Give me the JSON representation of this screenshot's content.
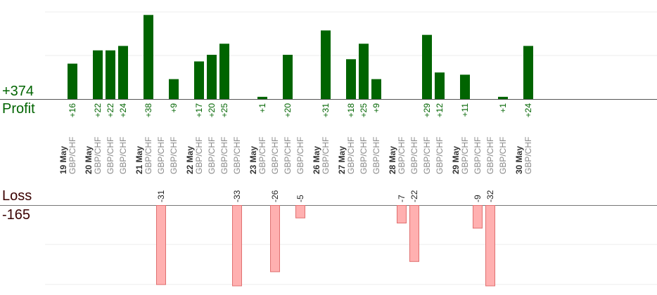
{
  "chart_data": {
    "type": "bar",
    "profit_label": "Profit",
    "profit_total": "+374",
    "loss_label": "Loss",
    "loss_total": "-165",
    "colors": {
      "profit_bar": "#006400",
      "loss_bar": "#ffb0b0",
      "loss_stroke": "#e07070",
      "profit_text": "#006400",
      "loss_text": "#3a0000",
      "pair_text": "#888888",
      "date_text": "#333333"
    },
    "groups": [
      {
        "date": "19 May",
        "trades": [
          {
            "pair": "GBP/CHF",
            "value": 16
          }
        ]
      },
      {
        "date": "20 May",
        "trades": [
          {
            "pair": "GBP/CHF",
            "value": 22
          },
          {
            "pair": "GBP/CHF",
            "value": 22
          },
          {
            "pair": "GBP/CHF",
            "value": 24
          }
        ]
      },
      {
        "date": "21 May",
        "trades": [
          {
            "pair": "GBP/CHF",
            "value": 38
          },
          {
            "pair": "GBP/CHF",
            "value": -31
          },
          {
            "pair": "GBP/CHF",
            "value": 9
          }
        ]
      },
      {
        "date": "22 May",
        "trades": [
          {
            "pair": "GBP/CHF",
            "value": 17
          },
          {
            "pair": "GBP/CHF",
            "value": 20
          },
          {
            "pair": "GBP/CHF",
            "value": 25
          },
          {
            "pair": "GBP/CHF",
            "value": -33
          }
        ]
      },
      {
        "date": "23 May",
        "trades": [
          {
            "pair": "GBP/CHF",
            "value": 1
          },
          {
            "pair": "GBP/CHF",
            "value": -26
          },
          {
            "pair": "GBP/CHF",
            "value": 20
          },
          {
            "pair": "GBP/CHF",
            "value": -5
          }
        ]
      },
      {
        "date": "26 May",
        "trades": [
          {
            "pair": "GBP/CHF",
            "value": 31
          }
        ]
      },
      {
        "date": "27 May",
        "trades": [
          {
            "pair": "GBP/CHF",
            "value": 18
          },
          {
            "pair": "GBP/CHF",
            "value": 25
          },
          {
            "pair": "GBP/CHF",
            "value": 9
          }
        ]
      },
      {
        "date": "28 May",
        "trades": [
          {
            "pair": "GBP/CHF",
            "value": -7
          },
          {
            "pair": "GBP/CHF",
            "value": -22
          },
          {
            "pair": "GBP/CHF",
            "value": 29
          },
          {
            "pair": "GBP/CHF",
            "value": 12
          }
        ]
      },
      {
        "date": "29 May",
        "trades": [
          {
            "pair": "GBP/CHF",
            "value": 11
          },
          {
            "pair": "GBP/CHF",
            "value": -9
          },
          {
            "pair": "GBP/CHF",
            "value": -32
          },
          {
            "pair": "GBP/CHF",
            "value": 1
          }
        ]
      },
      {
        "date": "30 May",
        "trades": [
          {
            "pair": "GBP/CHF",
            "value": 24
          }
        ]
      }
    ]
  }
}
